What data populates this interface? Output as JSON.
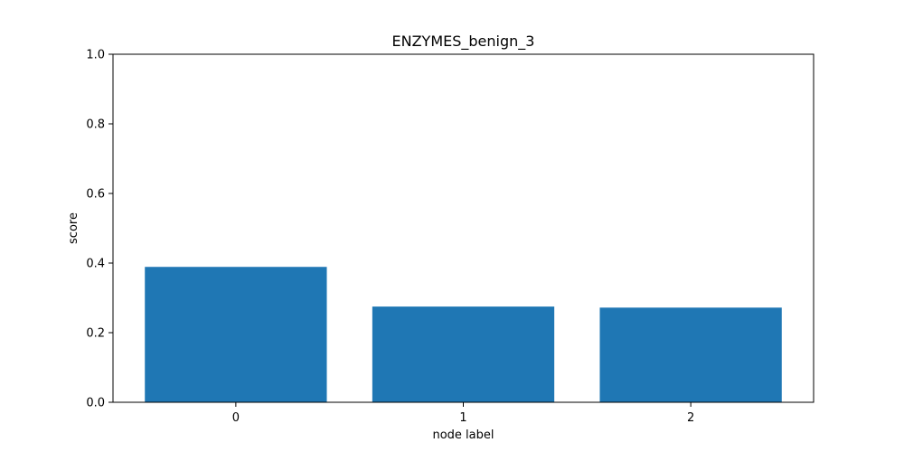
{
  "chart_data": {
    "type": "bar",
    "title": "ENZYMES_benign_3",
    "xlabel": "node label",
    "ylabel": "score",
    "categories": [
      "0",
      "1",
      "2"
    ],
    "values": [
      0.389,
      0.275,
      0.272
    ],
    "ylim": [
      0,
      1.0
    ],
    "yticks": [
      "0.0",
      "0.2",
      "0.4",
      "0.6",
      "0.8",
      "1.0"
    ],
    "grid": false,
    "legend": "none",
    "bar_color": "#1f77b4"
  }
}
